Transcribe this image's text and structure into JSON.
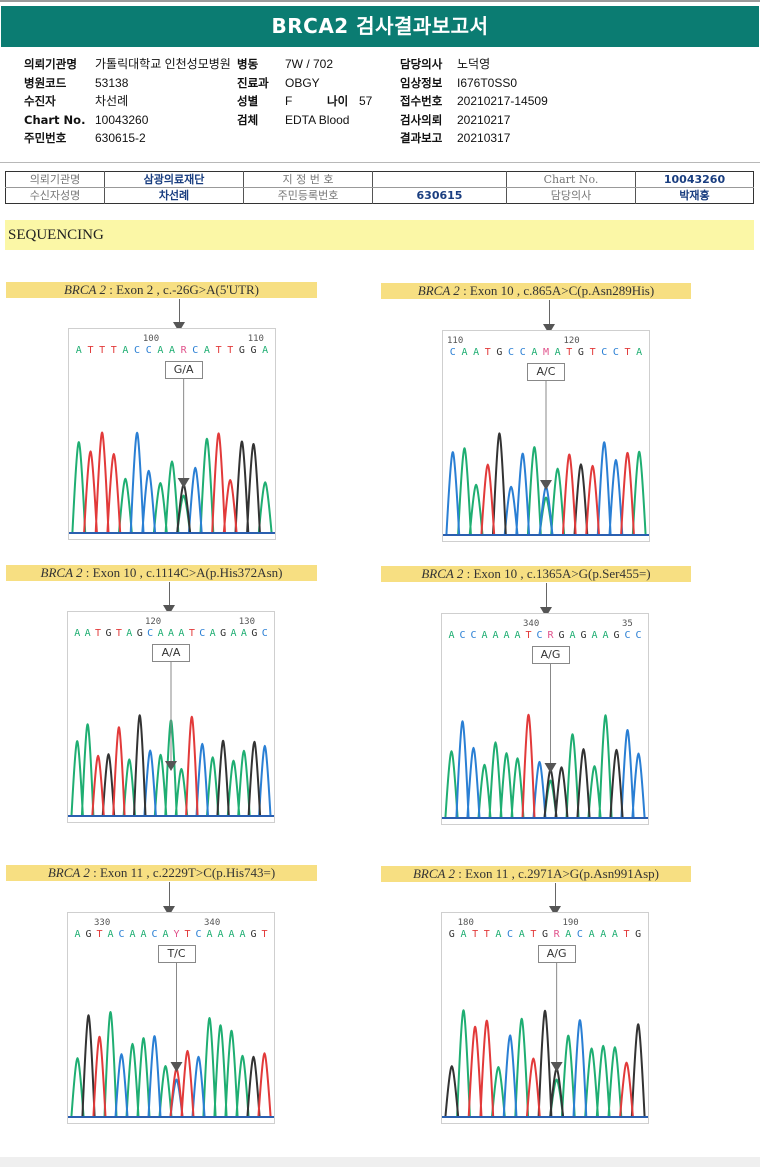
{
  "header": {
    "title": "BRCA2 검사결과보고서"
  },
  "patient_info": {
    "col1": [
      {
        "label": "의뢰기관명",
        "value": "가톨릭대학교 인천성모병원"
      },
      {
        "label": "병원코드",
        "value": "53138"
      },
      {
        "label": "수진자",
        "value": "차선례"
      },
      {
        "label": "Chart No.",
        "value": "10043260"
      },
      {
        "label": "주민번호",
        "value": "630615-2"
      }
    ],
    "col2": [
      {
        "label": "병동",
        "value": "7W / 702"
      },
      {
        "label": "진료과",
        "value": "OBGY"
      },
      {
        "label": "성별",
        "value": "F"
      },
      {
        "label": "검체",
        "value": "EDTA Blood"
      }
    ],
    "age": {
      "label": "나이",
      "value": "57"
    },
    "col3": [
      {
        "label": "담당의사",
        "value": "노덕영"
      },
      {
        "label": "임상정보",
        "value": "I676T0SS0"
      },
      {
        "label": "접수번호",
        "value": "20210217-14509"
      },
      {
        "label": "검사의뢰",
        "value": "20210217"
      },
      {
        "label": "결과보고",
        "value": "20210317"
      }
    ]
  },
  "lab_table": {
    "row1": [
      "의뢰기관명",
      "삼광의료재단",
      "지 정 번 호",
      "",
      "Chart No.",
      "10043260"
    ],
    "row2": [
      "수신자성명",
      "차선례",
      "주민등록번호",
      "630615",
      "담당의사",
      "박재홍"
    ]
  },
  "section": {
    "title": "SEQUENCING"
  },
  "variants": [
    {
      "gene": "BRCA 2",
      "desc": " : Exon 2 , c.-26G>A(5'UTR)",
      "genotype": "G/A",
      "pos_labels": [
        {
          "text": "100",
          "i": 6
        },
        {
          "text": "110",
          "i": 15
        }
      ],
      "sequence": "ATTTACCAARCATTGGA",
      "call_index": 9
    },
    {
      "gene": "BRCA 2",
      "desc": " : Exon 10 , c.865A>C(p.Asn289His)",
      "genotype": "A/C",
      "pos_labels": [
        {
          "text": "110",
          "i": 0
        },
        {
          "text": "120",
          "i": 10
        }
      ],
      "sequence": "CAATGCCAMATGTCCTA",
      "call_index": 8
    },
    {
      "gene": "BRCA 2",
      "desc": " : Exon 10 , c.1114C>A(p.His372Asn)",
      "genotype": "A/A",
      "pos_labels": [
        {
          "text": "120",
          "i": 7
        },
        {
          "text": "130",
          "i": 16
        }
      ],
      "sequence": "AATGTAGCAAATCAGAAGC",
      "call_index": 9
    },
    {
      "gene": "BRCA 2",
      "desc": " : Exon 10 , c.1365A>G(p.Ser455=)",
      "genotype": "A/G",
      "pos_labels": [
        {
          "text": "340",
          "i": 7
        },
        {
          "text": "35",
          "i": 16
        }
      ],
      "sequence": "ACCAAAATCRGAGAAGCC",
      "call_index": 9
    },
    {
      "gene": "BRCA 2",
      "desc": " : Exon 11 , c.2229T>C(p.His743=)",
      "genotype": "T/C",
      "pos_labels": [
        {
          "text": "330",
          "i": 2
        },
        {
          "text": "340",
          "i": 12
        }
      ],
      "sequence": "AGTACAACAYTCAAAAGT",
      "call_index": 9
    },
    {
      "gene": "BRCA 2",
      "desc": " : Exon 11 , c.2971A>G(p.Asn991Asp)",
      "genotype": "A/G",
      "pos_labels": [
        {
          "text": "180",
          "i": 1
        },
        {
          "text": "190",
          "i": 10
        }
      ],
      "sequence": "GATTACATGRACAAATG",
      "call_index": 9
    }
  ],
  "base_colors": {
    "A": "#1fae72",
    "C": "#2a7fd4",
    "G": "#333333",
    "T": "#e23a3a",
    "R": "#e0508a",
    "M": "#e0508a",
    "Y": "#e0508a"
  },
  "colors": {
    "banner": "#0b7c72",
    "section_bg": "#fbf7a6",
    "title_bg": "#f7df82",
    "table_value": "#1a3e80"
  }
}
